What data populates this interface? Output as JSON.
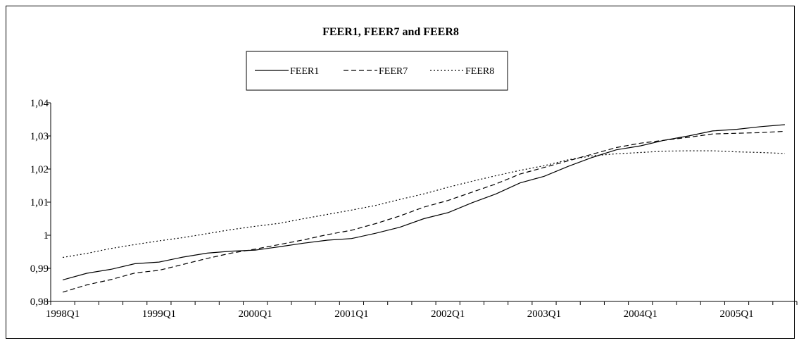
{
  "chart_data": {
    "type": "line",
    "title": "FEER1, FEER7 and FEER8",
    "xlabel": "",
    "ylabel": "",
    "ylim": [
      0.98,
      1.04
    ],
    "y_ticks": [
      "0,98",
      "0,99",
      "1",
      "1,01",
      "1,02",
      "1,03",
      "1,04"
    ],
    "x_tick_labels": [
      "1998Q1",
      "1999Q1",
      "2000Q1",
      "2001Q1",
      "2002Q1",
      "2003Q1",
      "2004Q1",
      "2005Q1"
    ],
    "legend_position": "top-center",
    "grid": false,
    "x": [
      "1998Q1",
      "1998Q2",
      "1998Q3",
      "1998Q4",
      "1999Q1",
      "1999Q2",
      "1999Q3",
      "1999Q4",
      "2000Q1",
      "2000Q2",
      "2000Q3",
      "2000Q4",
      "2001Q1",
      "2001Q2",
      "2001Q3",
      "2001Q4",
      "2002Q1",
      "2002Q2",
      "2002Q3",
      "2002Q4",
      "2003Q1",
      "2003Q2",
      "2003Q3",
      "2003Q4",
      "2004Q1",
      "2004Q2",
      "2004Q3",
      "2004Q4",
      "2005Q1",
      "2005Q2",
      "2005Q3"
    ],
    "series": [
      {
        "name": "FEER1",
        "style": "solid",
        "values": [
          0.9865,
          0.9885,
          0.9897,
          0.9914,
          0.9919,
          0.9934,
          0.9946,
          0.9952,
          0.9955,
          0.9965,
          0.9976,
          0.9985,
          0.999,
          1.0006,
          1.0024,
          1.005,
          1.0068,
          1.0098,
          1.0125,
          1.0158,
          1.0178,
          1.0208,
          1.0235,
          1.0258,
          1.027,
          1.0287,
          1.03,
          1.0315,
          1.032,
          1.0328,
          1.0334
        ]
      },
      {
        "name": "FEER7",
        "style": "dashed",
        "values": [
          0.9828,
          0.985,
          0.9866,
          0.9886,
          0.9894,
          0.9912,
          0.993,
          0.9946,
          0.9958,
          0.9972,
          0.9986,
          1.0002,
          1.0015,
          1.0035,
          1.0058,
          1.0085,
          1.0105,
          1.013,
          1.0155,
          1.0185,
          1.0205,
          1.0225,
          1.0245,
          1.0265,
          1.0278,
          1.0287,
          1.0296,
          1.0306,
          1.0308,
          1.031,
          1.0314
        ]
      },
      {
        "name": "FEER8",
        "style": "dotted",
        "values": [
          0.9933,
          0.9945,
          0.996,
          0.9972,
          0.9983,
          0.9993,
          1.0005,
          1.0017,
          1.0027,
          1.0036,
          1.005,
          1.0063,
          1.0076,
          1.009,
          1.0108,
          1.0125,
          1.0145,
          1.0163,
          1.018,
          1.0196,
          1.021,
          1.0228,
          1.024,
          1.0246,
          1.025,
          1.0254,
          1.0255,
          1.0255,
          1.0252,
          1.025,
          1.0247
        ]
      }
    ]
  }
}
